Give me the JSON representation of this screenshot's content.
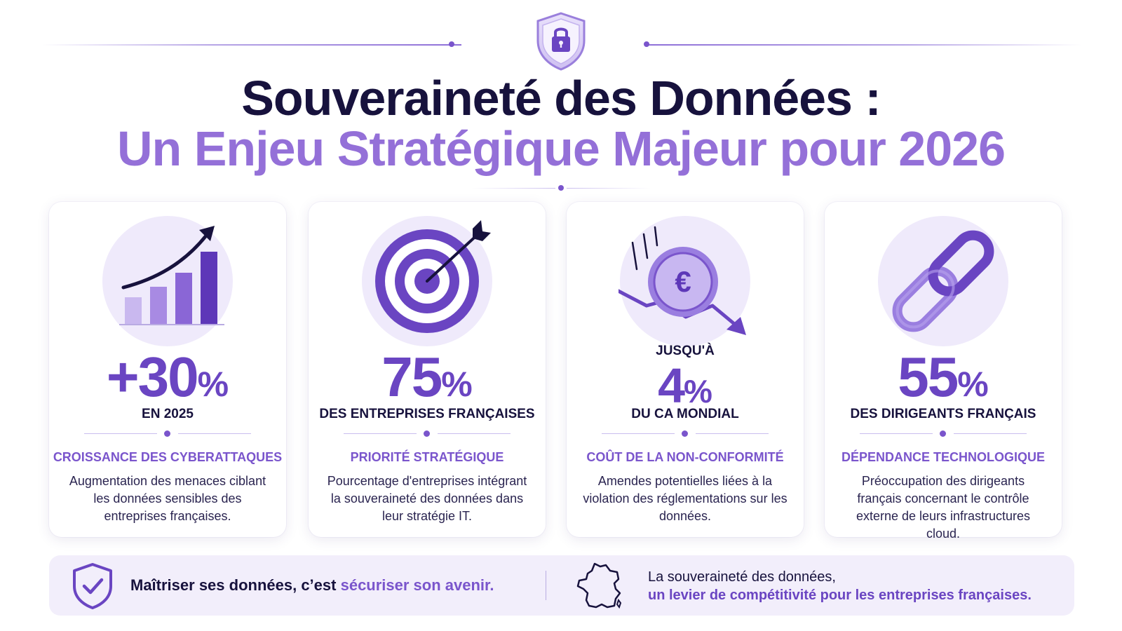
{
  "header": {
    "title_line1": "Souveraineté des Données :",
    "title_line2": "Un Enjeu Stratégique Majeur pour 2026",
    "icon": "padlock-shield-icon"
  },
  "colors": {
    "primary_dark": "#17123d",
    "accent_purple": "#6a45c2",
    "light_purple": "#9470d8",
    "banner_bg": "#f2eefb"
  },
  "cards": [
    {
      "icon": "rising-bar-chart-icon",
      "pre": "",
      "number": "+30",
      "unit": "%",
      "subtitle": "EN 2025",
      "category": "CROISSANCE DES CYBERATTAQUES",
      "description": "Augmentation des menaces ciblant les données sensibles des entreprises françaises."
    },
    {
      "icon": "target-arrow-icon",
      "pre": "",
      "number": "75",
      "unit": "%",
      "subtitle": "DES ENTREPRISES FRANÇAISES",
      "category": "PRIORITÉ STRATÉGIQUE",
      "description": "Pourcentage d'entreprises intégrant la souveraineté des données dans leur stratégie IT."
    },
    {
      "icon": "falling-euro-coin-icon",
      "pre": "JUSQU'À",
      "number": "4",
      "unit": "%",
      "subtitle": "DU CA MONDIAL",
      "category": "COÛT DE LA NON-CONFORMITÉ",
      "description": "Amendes potentielles liées à la violation des réglementations sur les données."
    },
    {
      "icon": "chain-link-icon",
      "pre": "",
      "number": "55",
      "unit": "%",
      "subtitle": "DES DIRIGEANTS FRANÇAIS",
      "category": "DÉPENDANCE TECHNOLOGIQUE",
      "description": "Préoccupation des dirigeants français concernant le contrôle externe de leurs infrastructures cloud."
    }
  ],
  "banner": {
    "left_icon": "shield-check-icon",
    "left_text_plain": "Maîtriser ses données, c’est",
    "left_text_accent": "sécuriser son avenir.",
    "right_icon": "france-map-icon",
    "right_line1": "La souveraineté des données,",
    "right_line2": "un levier de compétitivité pour les entreprises françaises."
  }
}
